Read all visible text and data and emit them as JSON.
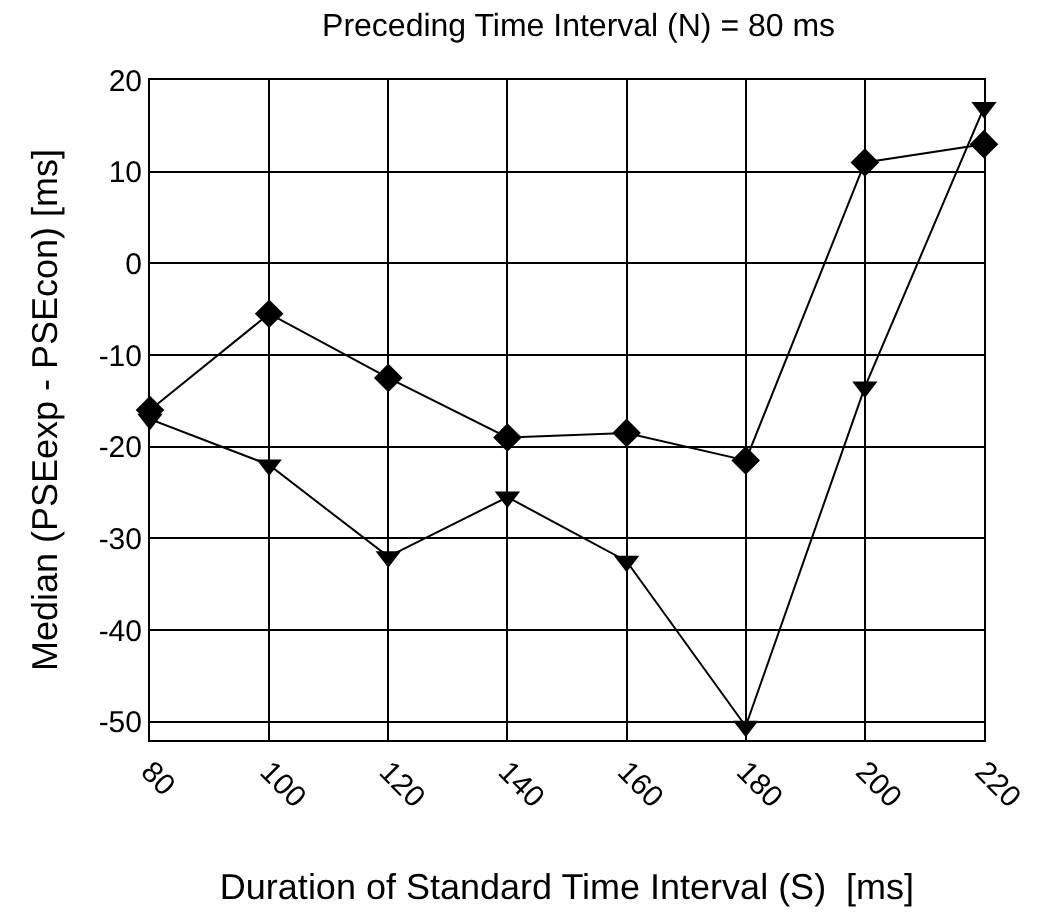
{
  "chart_data": {
    "type": "line",
    "title": "Preceding Time Interval (N) = 80 ms",
    "xlabel": "Duration of Standard Time Interval (S)  [ms]",
    "ylabel": "Median (PSEexp - PSEcon) [ms]",
    "x": [
      80,
      100,
      120,
      140,
      160,
      180,
      200,
      220
    ],
    "series": [
      {
        "color": "#000000",
        "marker": "diamond",
        "values": [
          -16,
          -5.5,
          -12.5,
          -19,
          -18.5,
          -21.5,
          11,
          13
        ]
      },
      {
        "color": "#000000",
        "marker": "triangle",
        "values": [
          -17,
          -22,
          -32,
          -25.5,
          -32.5,
          -50.5,
          -13.5,
          17
        ]
      }
    ],
    "xlim": [
      80,
      220
    ],
    "xticks": [
      80,
      100,
      120,
      140,
      160,
      180,
      200,
      220
    ],
    "ylim": [
      -52,
      20
    ],
    "yticks": [
      -50,
      -40,
      -30,
      -20,
      -10,
      0,
      10,
      20
    ],
    "grid": true,
    "legend": false,
    "line_style": "solid"
  }
}
